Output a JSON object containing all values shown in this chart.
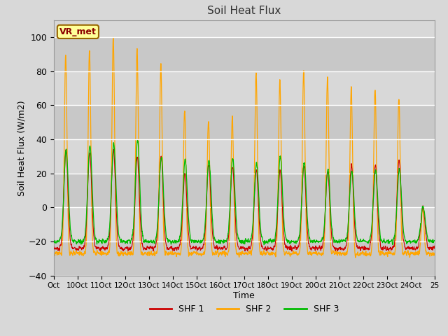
{
  "title": "Soil Heat Flux",
  "xlabel": "Time",
  "ylabel": "Soil Heat Flux (W/m2)",
  "ylim": [
    -40,
    110
  ],
  "yticks": [
    -40,
    -20,
    0,
    20,
    40,
    60,
    80,
    100
  ],
  "background_color": "#d8d8d8",
  "plot_bg_color": "#d8d8d8",
  "grid_color": "#ffffff",
  "shf1_color": "#cc0000",
  "shf2_color": "#ffa500",
  "shf3_color": "#00bb00",
  "annotation_text": "VR_met",
  "annotation_bg": "#ffff99",
  "annotation_border": "#996600",
  "legend_labels": [
    "SHF 1",
    "SHF 2",
    "SHF 3"
  ],
  "x_tick_labels": [
    "Oct",
    "10Oct",
    "11Oct",
    "12Oct",
    "13Oct",
    "14Oct",
    "15Oct",
    "16Oct",
    "17Oct",
    "18Oct",
    "19Oct",
    "20Oct",
    "21Oct",
    "22Oct",
    "23Oct",
    "24Oct",
    "25"
  ],
  "n_days": 16,
  "points_per_day": 144,
  "shf2_peaks": [
    89,
    92,
    100,
    94,
    84,
    57,
    52,
    53,
    80,
    75,
    81,
    77,
    70,
    70,
    65,
    0
  ],
  "shf1_peaks": [
    33,
    32,
    34,
    30,
    30,
    20,
    25,
    25,
    22,
    22,
    25,
    22,
    25,
    25,
    28,
    0
  ],
  "shf3_peaks": [
    34,
    37,
    38,
    40,
    30,
    28,
    28,
    29,
    26,
    30,
    26,
    22,
    22,
    22,
    22,
    0
  ],
  "shf2_trough": -27,
  "shf1_trough": -24,
  "shf3_trough": -20
}
